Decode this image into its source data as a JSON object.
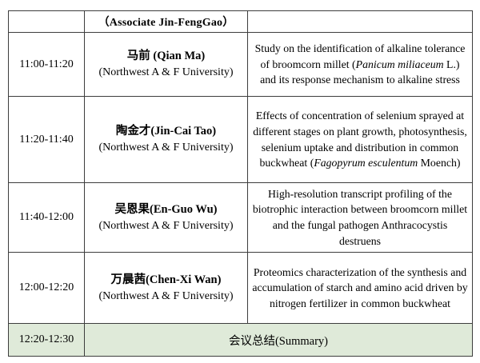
{
  "table": {
    "header": {
      "chair_label": "（Associate Jin-FengGao）"
    },
    "rows": [
      {
        "time": "11:00-11:20",
        "speaker_name": "马前 (Qian Ma)",
        "affiliation": "(Northwest A & F University)",
        "title_segments": [
          {
            "t": "Study on the identification of alkaline tolerance of broomcorn millet (",
            "i": false
          },
          {
            "t": "Panicum miliaceum",
            "i": true
          },
          {
            "t": " L.) and its response mechanism to alkaline stress",
            "i": false
          }
        ]
      },
      {
        "time": "11:20-11:40",
        "speaker_name": "陶金才(Jin-Cai Tao)",
        "affiliation": "(Northwest A & F University)",
        "title_segments": [
          {
            "t": "Effects of concentration of selenium sprayed at different stages on plant growth, photosynthesis, selenium uptake and distribution in common buckwheat (",
            "i": false
          },
          {
            "t": "Fagopyrum esculentum",
            "i": true
          },
          {
            "t": " Moench)",
            "i": false
          }
        ]
      },
      {
        "time": "11:40-12:00",
        "speaker_name": "吴恩果(En-Guo Wu)",
        "affiliation": "(Northwest A & F University)",
        "title_segments": [
          {
            "t": "High-resolution transcript profiling of the biotrophic interaction between broomcorn millet and the fungal pathogen Anthracocystis destruens",
            "i": false
          }
        ]
      },
      {
        "time": "12:00-12:20",
        "speaker_name": "万晨茜(Chen-Xi Wan)",
        "affiliation": "(Northwest A & F University)",
        "title_segments": [
          {
            "t": "Proteomics characterization of the synthesis and accumulation of starch and amino acid driven by nitrogen fertilizer in common buckwheat",
            "i": false
          }
        ]
      }
    ],
    "summary_row": {
      "time": "12:20-12:30",
      "label": "会议总结(Summary)"
    },
    "colors": {
      "summary_background": "#dfead9",
      "border": "#3d3d3d"
    }
  }
}
